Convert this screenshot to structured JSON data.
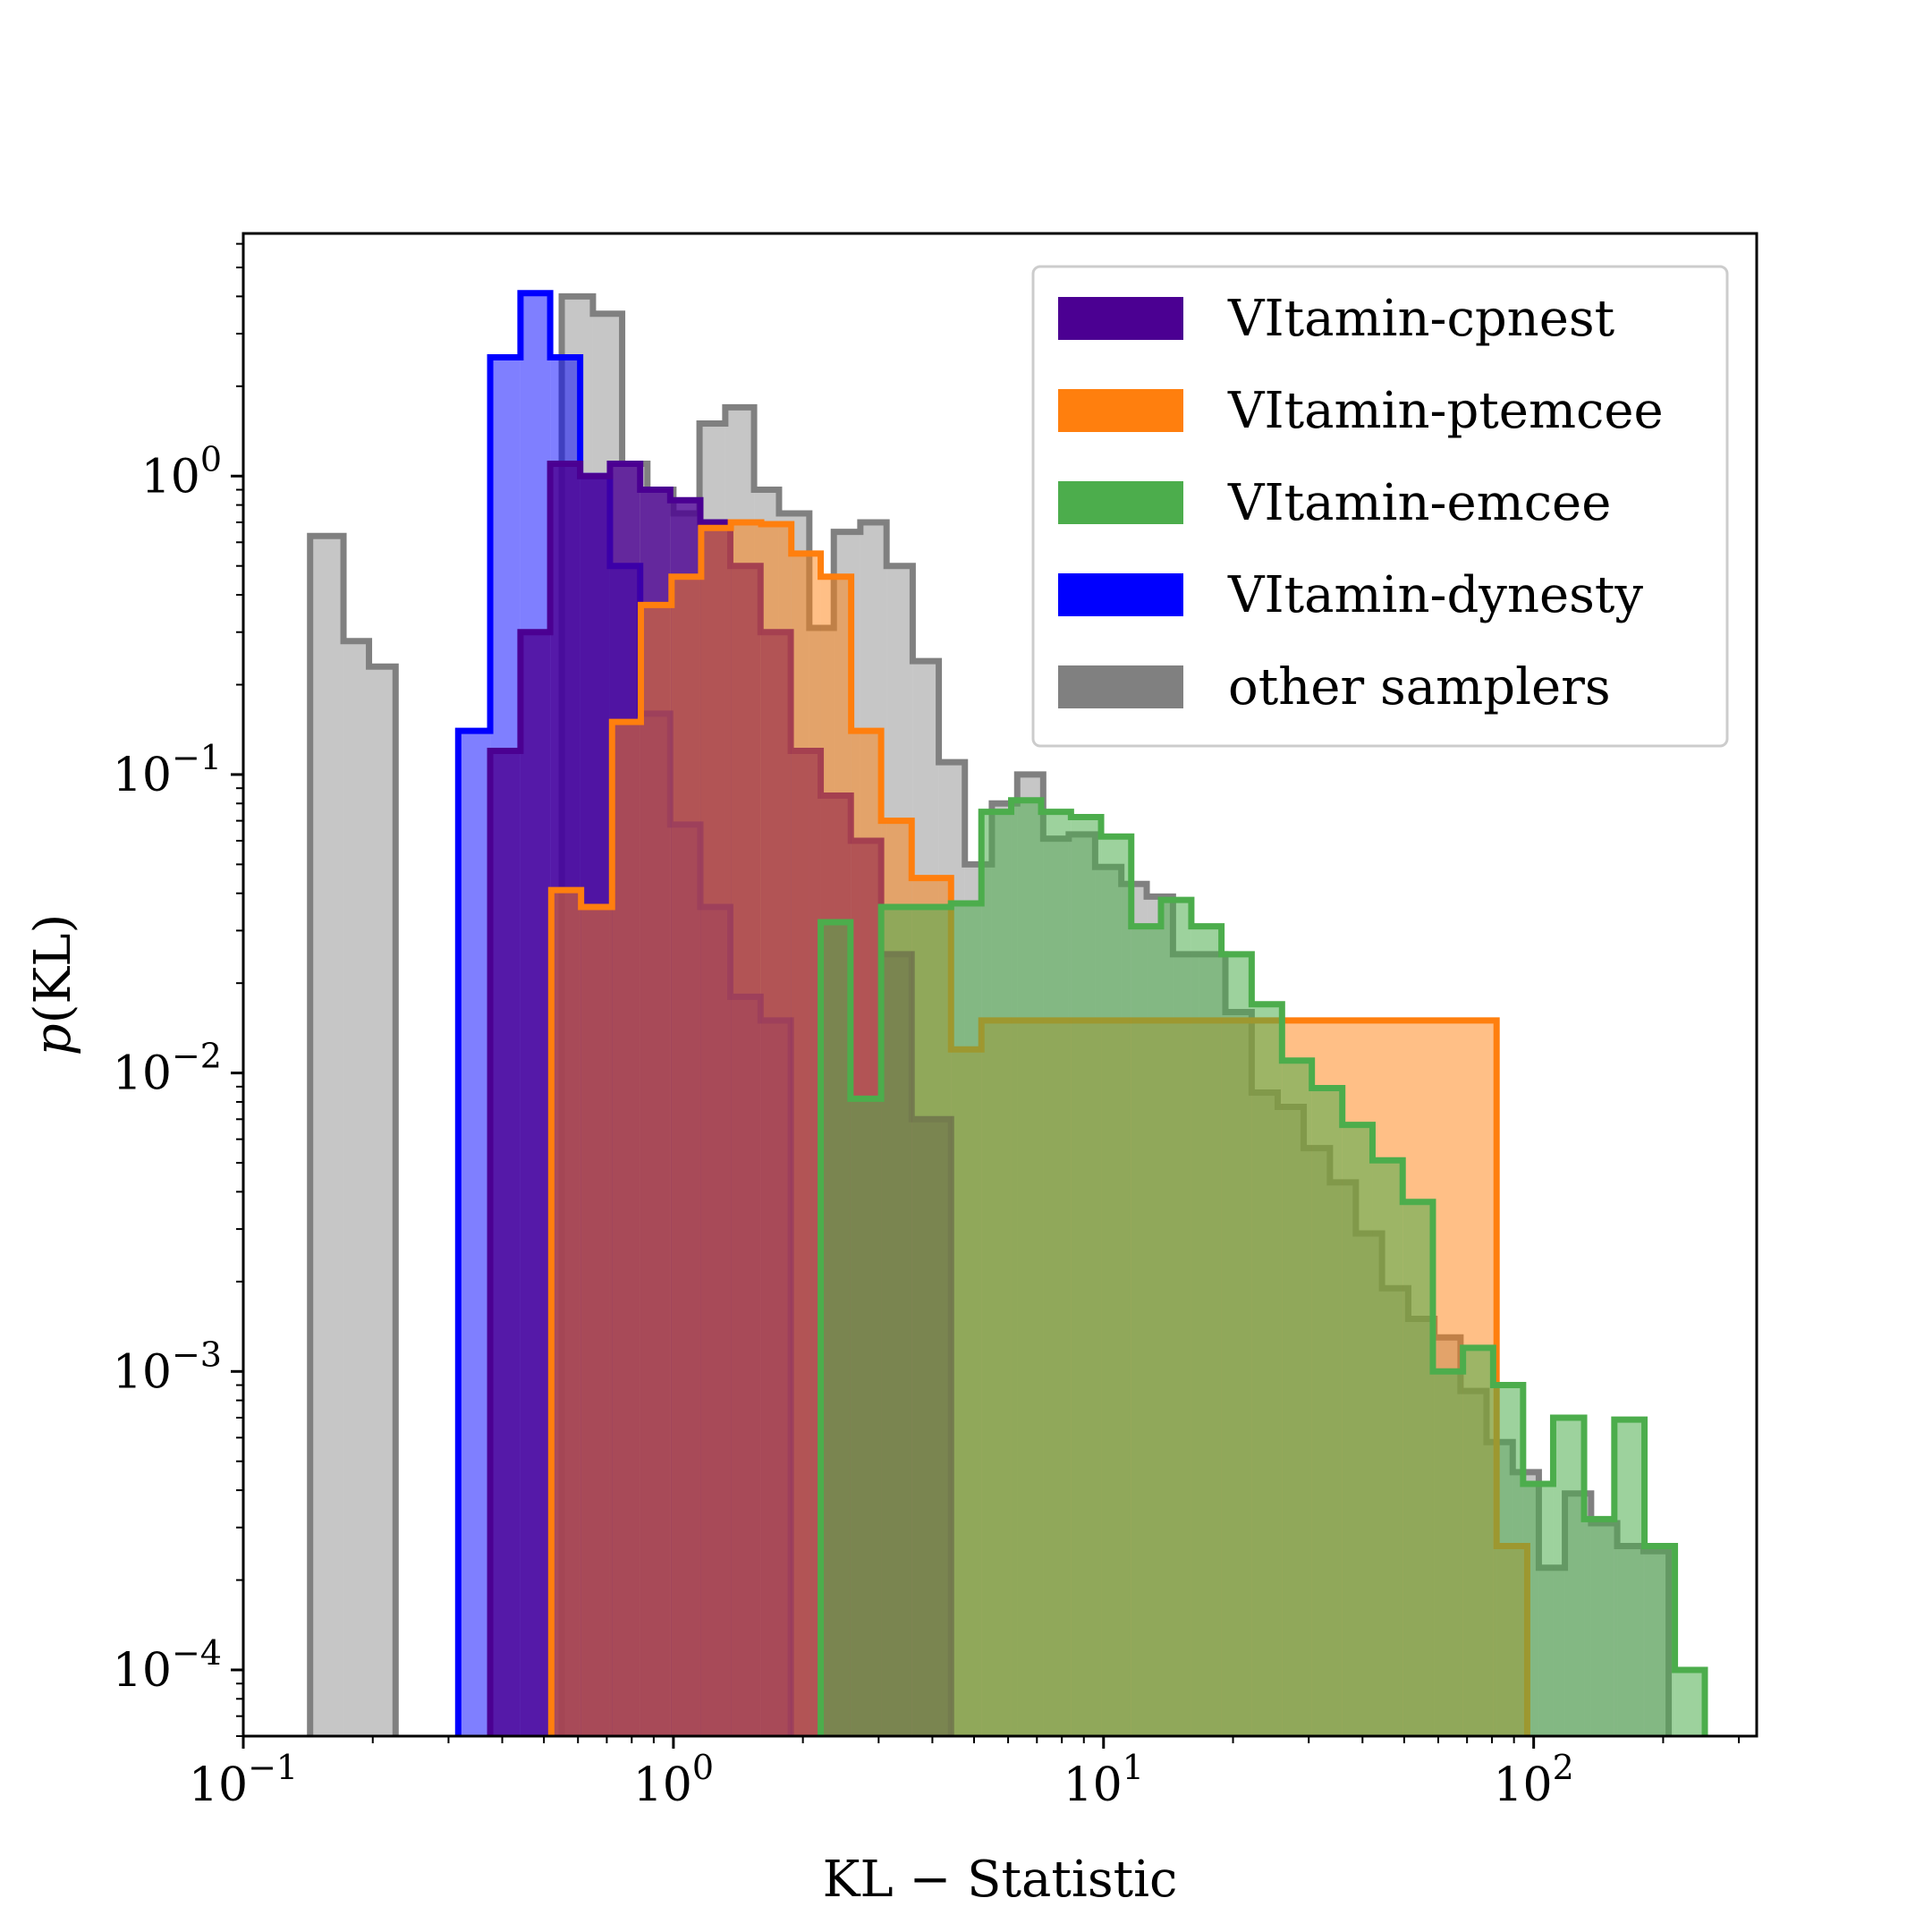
{
  "chart_data": {
    "type": "histogram",
    "title": "",
    "xlabel": "KL − Statistic",
    "ylabel": "p(KL)",
    "xscale": "log",
    "yscale": "log",
    "xlim": [
      0.1,
      330
    ],
    "ylim": [
      6e-05,
      6.5
    ],
    "grid": false,
    "legend_position": "top-right",
    "x_ticks": [
      {
        "value": 0.1,
        "base": "10",
        "exp": "−1"
      },
      {
        "value": 1,
        "base": "10",
        "exp": "0"
      },
      {
        "value": 10,
        "base": "10",
        "exp": "1"
      },
      {
        "value": 100,
        "base": "10",
        "exp": "2"
      }
    ],
    "y_ticks": [
      {
        "value": 1,
        "base": "10",
        "exp": "0"
      },
      {
        "value": 0.1,
        "base": "10",
        "exp": "−1"
      },
      {
        "value": 0.01,
        "base": "10",
        "exp": "−2"
      },
      {
        "value": 0.001,
        "base": "10",
        "exp": "−3"
      },
      {
        "value": 0.0001,
        "base": "10",
        "exp": "−4"
      }
    ],
    "series": [
      {
        "name": "other samplers",
        "fill": "#808080",
        "edge": "#808080",
        "alpha": 0.45,
        "edges": [
          0.143,
          0.171,
          0.196,
          0.226
        ],
        "values": [
          0.63,
          0.28,
          0.23
        ]
      },
      {
        "name": "other samplers",
        "fill": "#808080",
        "edge": "#808080",
        "alpha": 0.45,
        "edges": [
          0.55,
          0.65,
          0.76,
          0.87,
          1.0,
          1.15,
          1.32,
          1.54,
          1.76,
          2.07,
          2.36,
          2.72,
          3.13,
          3.6,
          4.14,
          4.76,
          5.5,
          6.3,
          7.24,
          8.3,
          9.56,
          11,
          12.6,
          14.5,
          16.7,
          19.2,
          22.1,
          25.4,
          29.2,
          33.6,
          38.6,
          44.4,
          51.1,
          58.8,
          67.6,
          77.7,
          89.4,
          102.8,
          118.2,
          136,
          156.4,
          180,
          206
        ],
        "values": [
          4.0,
          3.5,
          1.1,
          0.9,
          0.75,
          1.5,
          1.7,
          0.9,
          0.75,
          0.31,
          0.65,
          0.7,
          0.5,
          0.24,
          0.11,
          0.05,
          0.08,
          0.1,
          0.061,
          0.063,
          0.049,
          0.043,
          0.039,
          0.025,
          0.025,
          0.016,
          0.0086,
          0.0077,
          0.0056,
          0.0043,
          0.0029,
          0.0019,
          0.0015,
          0.0013,
          0.00086,
          0.00058,
          0.00046,
          0.00022,
          0.00039,
          0.00031,
          0.00026,
          0.00025
        ]
      },
      {
        "name": "VItamin-dynesty",
        "fill": "#0000ff",
        "edge": "#0000ff",
        "alpha": 0.5,
        "edges": [
          0.316,
          0.375,
          0.441,
          0.517,
          0.607,
          0.712,
          0.837,
          0.983,
          1.155,
          1.356,
          1.594,
          1.874
        ],
        "values": [
          0.14,
          2.5,
          4.1,
          2.5,
          1.0,
          0.5,
          0.16,
          0.068,
          0.036,
          0.018,
          0.015
        ]
      },
      {
        "name": "VItamin-cpnest",
        "fill": "#4b0092",
        "edge": "#4b0092",
        "alpha": 0.8,
        "edges": [
          0.375,
          0.441,
          0.517,
          0.607,
          0.712,
          0.837,
          0.983,
          1.155,
          1.356,
          1.594,
          1.874,
          2.2,
          2.585,
          3.04,
          3.58,
          4.42
        ],
        "values": [
          0.12,
          0.3,
          1.1,
          1.0,
          1.1,
          0.9,
          0.83,
          0.7,
          0.5,
          0.3,
          0.12,
          0.085,
          0.06,
          0.025,
          0.007
        ]
      },
      {
        "name": "VItamin-ptemcee",
        "fill": "#ff7f0e",
        "edge": "#ff7f0e",
        "alpha": 0.5,
        "edges": [
          0.52,
          0.61,
          0.72,
          0.84,
          0.99,
          1.16,
          1.36,
          1.6,
          1.88,
          2.2,
          2.59,
          3.04,
          3.58,
          4.42,
          5.2,
          82,
          96.6
        ],
        "values": [
          0.041,
          0.036,
          0.15,
          0.37,
          0.46,
          0.67,
          0.7,
          0.69,
          0.55,
          0.46,
          0.14,
          0.07,
          0.045,
          0.012,
          0.015,
          0.00026
        ]
      },
      {
        "name": "VItamin-emcee",
        "fill": "#4cad4c",
        "edge": "#4cad4c",
        "alpha": 0.55,
        "edges": [
          2.2,
          2.58,
          3.04,
          3.58,
          4.42,
          5.2,
          6.1,
          7.16,
          8.4,
          9.87,
          11.6,
          13.6,
          16.0,
          18.8,
          22.1,
          26.0,
          30.5,
          35.9,
          42.2,
          49.6,
          58.3,
          68.5,
          80.5,
          94.5,
          111,
          131,
          154,
          181,
          213,
          250,
          294
        ],
        "values": [
          0.032,
          0.0082,
          0.036,
          0.036,
          0.037,
          0.075,
          0.082,
          0.075,
          0.072,
          0.062,
          0.031,
          0.038,
          0.031,
          0.025,
          0.017,
          0.011,
          0.0089,
          0.0067,
          0.0051,
          0.0037,
          0.001,
          0.0012,
          0.0009,
          0.00042,
          0.0007,
          0.00032,
          0.00069,
          0.00026,
          0.0001,
          0.0
        ],
        "values_note": ""
      }
    ],
    "legend": [
      {
        "label": "VItamin-cpnest",
        "color": "#4b0092"
      },
      {
        "label": "VItamin-ptemcee",
        "color": "#ff7f0e"
      },
      {
        "label": "VItamin-emcee",
        "color": "#4cad4c"
      },
      {
        "label": "VItamin-dynesty",
        "color": "#0000ff"
      },
      {
        "label": "other samplers",
        "color": "#808080"
      }
    ]
  }
}
